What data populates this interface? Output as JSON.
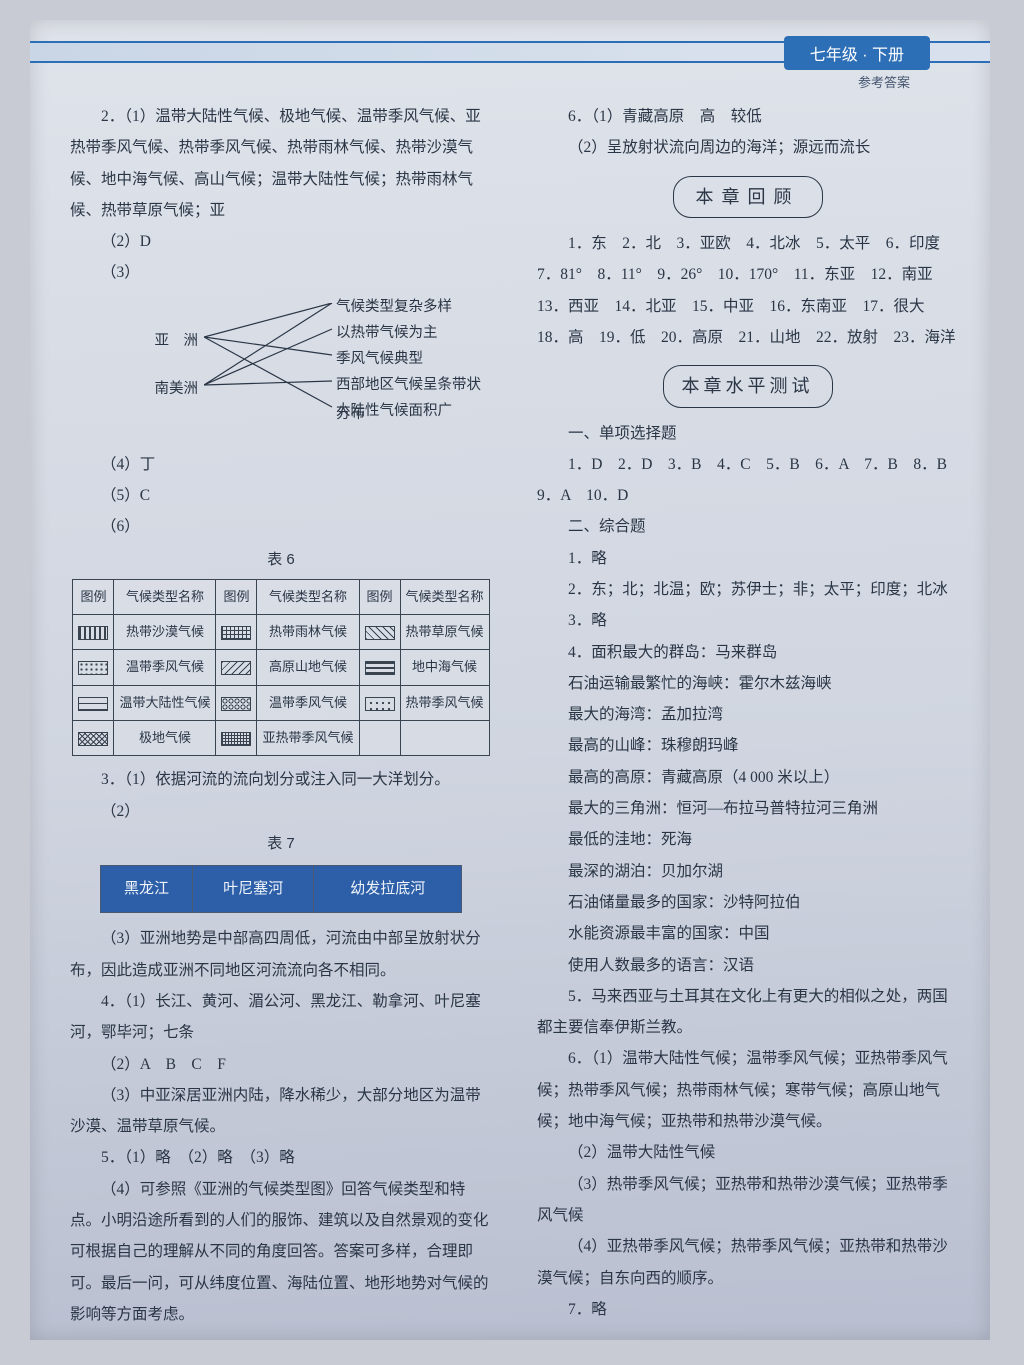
{
  "header": {
    "grade": "七年级 · 下册",
    "sub": "参考答案"
  },
  "left": {
    "q2_1": "2．（1）温带大陆性气候、极地气候、温带季风气候、亚热带季风气候、热带季风气候、热带雨林气候、热带沙漠气候、地中海气候、高山气候；温带大陆性气候；热带雨林气候、热带草原气候；亚",
    "q2_2": "（2）D",
    "q2_3": "（3）",
    "diagram": {
      "left": [
        "亚　洲",
        "南美洲"
      ],
      "right": [
        "气候类型复杂多样",
        "以热带气候为主",
        "季风气候典型",
        "西部地区气候呈条带状分布",
        "大陆性气候面积广"
      ],
      "edges": [
        [
          0,
          0
        ],
        [
          0,
          2
        ],
        [
          0,
          4
        ],
        [
          1,
          0
        ],
        [
          1,
          1
        ],
        [
          1,
          3
        ]
      ],
      "line_color": "#2a3646"
    },
    "q2_4": "（4）丁",
    "q2_5": "（5）C",
    "q2_6": "（6）",
    "table6": {
      "caption": "表 6",
      "head": [
        "图例",
        "气候类型名称",
        "图例",
        "气候类型名称",
        "图例",
        "气候类型名称"
      ],
      "rows": [
        [
          "p1",
          "热带沙漠气候",
          "p2",
          "热带雨林气候",
          "p3",
          "热带草原气候"
        ],
        [
          "p4",
          "温带季风气候",
          "p5",
          "高原山地气候",
          "p6",
          "地中海气候"
        ],
        [
          "p7",
          "温带大陆性气候",
          "p8",
          "温带季风气候",
          "p9",
          "热带季风气候"
        ],
        [
          "p10",
          "极地气候",
          "p11",
          "亚热带季风气候",
          "",
          ""
        ]
      ],
      "patterns": {
        "p1": "repeating-linear-gradient(90deg,#3a4350 0 2px,transparent 2px 5px)",
        "p2": "repeating-linear-gradient(0deg,#3a4350 0 1px,transparent 1px 4px),repeating-linear-gradient(90deg,#3a4350 0 1px,transparent 1px 4px)",
        "p3": "repeating-linear-gradient(45deg,#3a4350 0 1px,transparent 1px 5px)",
        "p4": "radial-gradient(#3a4350 1px,transparent 1.3px) 0 0/5px 5px",
        "p5": "repeating-linear-gradient(135deg,#3a4350 0 1px,transparent 1px 5px)",
        "p6": "repeating-linear-gradient(0deg,#3a4350 0 2px,transparent 2px 5px)",
        "p7": "repeating-linear-gradient(0deg,#3a4350 0 1px,transparent 1px 6px)",
        "p8": "radial-gradient(circle,transparent 40%,#3a4350 41% 60%,transparent 61%) 0 0/6px 6px",
        "p9": "radial-gradient(#3a4350 1px,transparent 1.3px) 2px 2px/6px 6px",
        "p10": "repeating-linear-gradient(45deg,#3a4350 0 1px,transparent 1px 4px),repeating-linear-gradient(135deg,#3a4350 0 1px,transparent 1px 4px)",
        "p11": "repeating-linear-gradient(90deg,#3a4350 0 1px,transparent 1px 3px),repeating-linear-gradient(0deg,#3a4350 0 1px,transparent 1px 3px)"
      }
    },
    "q3_1": "3．（1）依据河流的流向划分或注入同一大洋划分。",
    "q3_2": "（2）",
    "table7": {
      "caption": "表 7",
      "cells": [
        "黑龙江",
        "叶尼塞河",
        "幼发拉底河"
      ]
    },
    "q3_3": "（3）亚洲地势是中部高四周低，河流由中部呈放射状分布，因此造成亚洲不同地区河流流向各不相同。",
    "q4_1": "4．（1）长江、黄河、湄公河、黑龙江、勒拿河、叶尼塞河，鄂毕河；七条",
    "q4_2": "（2）A　B　C　F",
    "q4_3": "（3）中亚深居亚洲内陆，降水稀少，大部分地区为温带沙漠、温带草原气候。",
    "q5": "5．（1）略　（2）略　（3）略",
    "q5_4": "（4）可参照《亚洲的气候类型图》回答气候类型和特点。小明沿途所看到的人们的服饰、建筑以及自然景观的变化可根据自己的理解从不同的角度回答。答案可多样，合理即可。最后一问，可从纬度位置、海陆位置、地形地势对气候的影响等方面考虑。"
  },
  "right": {
    "q6_1": "6．（1）青藏高原　高　较低",
    "q6_2": "（2）呈放射状流向周边的海洋；源远而流长",
    "review": {
      "title": "本章回顾",
      "body": "1．东　2．北　3．亚欧　4．北冰　5．太平　6．印度　7．81°　8．11°　9．26°　10．170°　11．东亚　12．南亚　13．西亚　14．北亚　15．中亚　16．东南亚　17．很大　18．高　19．低　20．高原　21．山地　22．放射　23．海洋"
    },
    "test": {
      "title": "本章水平测试",
      "mc_head": "一、单项选择题",
      "mc": "1．D　2．D　3．B　4．C　5．B　6．A　7．B　8．B　9．A　10．D",
      "zh_head": "二、综合题",
      "items": [
        "1．略",
        "2．东；北；北温；欧；苏伊士；非；太平；印度；北冰",
        "3．略",
        "4．面积最大的群岛：马来群岛",
        "石油运输最繁忙的海峡：霍尔木兹海峡",
        "最大的海湾：孟加拉湾",
        "最高的山峰：珠穆朗玛峰",
        "最高的高原：青藏高原（4 000 米以上）",
        "最大的三角洲：恒河—布拉马普特拉河三角洲",
        "最低的洼地：死海",
        "最深的湖泊：贝加尔湖",
        "石油储量最多的国家：沙特阿拉伯",
        "水能资源最丰富的国家：中国",
        "使用人数最多的语言：汉语",
        "5．马来西亚与土耳其在文化上有更大的相似之处，两国都主要信奉伊斯兰教。",
        "6．（1）温带大陆性气候；温带季风气候；亚热带季风气候；热带季风气候；热带雨林气候；寒带气候；高原山地气候；地中海气候；亚热带和热带沙漠气候。",
        "（2）温带大陆性气候",
        "（3）热带季风气候；亚热带和热带沙漠气候；亚热带季风气候",
        "（4）亚热带季风气候；热带季风气候；亚热带和热带沙漠气候；自东向西的顺序。",
        "7．略"
      ]
    }
  }
}
